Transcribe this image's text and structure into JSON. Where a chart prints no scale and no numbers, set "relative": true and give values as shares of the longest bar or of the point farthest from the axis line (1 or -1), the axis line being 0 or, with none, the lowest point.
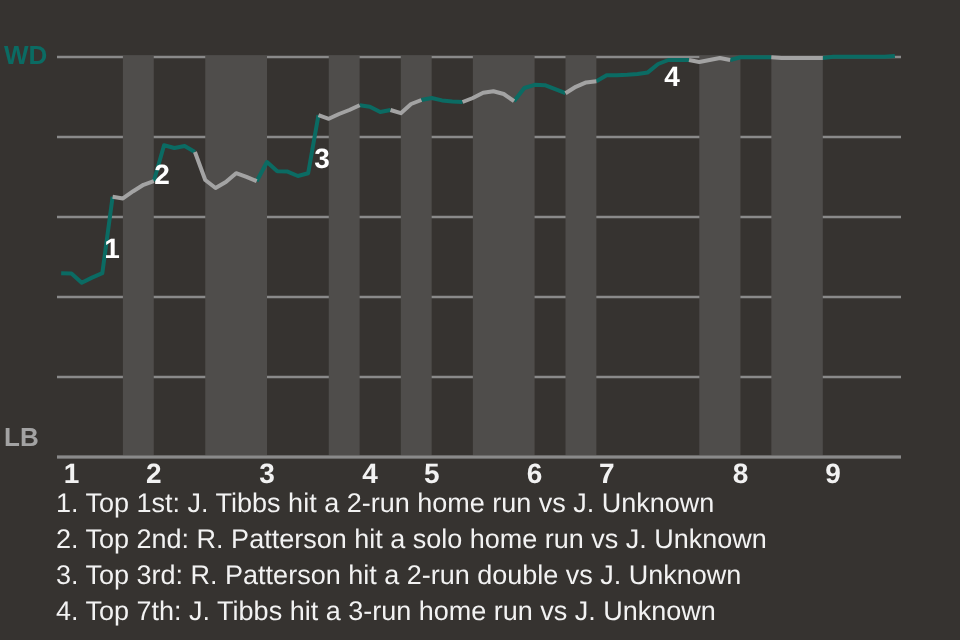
{
  "chart_data": {
    "type": "line",
    "relative": true,
    "categories": [
      null,
      "1",
      null,
      null,
      null,
      null,
      null,
      null,
      null,
      "2",
      null,
      null,
      null,
      null,
      null,
      null,
      null,
      null,
      null,
      null,
      "3",
      null,
      null,
      null,
      null,
      null,
      null,
      null,
      null,
      null,
      "4",
      null,
      null,
      null,
      null,
      null,
      "5",
      null,
      null,
      null,
      null,
      null,
      null,
      null,
      null,
      null,
      "6",
      null,
      null,
      null,
      null,
      null,
      null,
      "7",
      null,
      null,
      null,
      null,
      null,
      null,
      null,
      null,
      null,
      null,
      null,
      null,
      "8",
      null,
      null,
      null,
      null,
      null,
      null,
      null,
      null,
      "9",
      null,
      null,
      null,
      null,
      null,
      null
    ],
    "grid": "y",
    "series": [
      {
        "color": "#0b6b63",
        "values": [
          0.457,
          0.456,
          0.433,
          0.446,
          0.457,
          0.648,
          null,
          null,
          null,
          0.687,
          0.777,
          0.77,
          0.775,
          0.76,
          null,
          null,
          null,
          null,
          null,
          0.687,
          0.735,
          0.712,
          0.711,
          0.7,
          0.707,
          0.852,
          null,
          null,
          null,
          0.877,
          0.873,
          0.86,
          0.865,
          null,
          null,
          0.89,
          0.895,
          0.889,
          0.886,
          0.885,
          null,
          null,
          null,
          null,
          0.887,
          0.92,
          0.928,
          0.927,
          0.917,
          0.907,
          null,
          null,
          0.937,
          0.952,
          0.952,
          0.953,
          0.955,
          0.959,
          0.98,
          0.99,
          0.99,
          0.99,
          null,
          null,
          null,
          0.99,
          0.997,
          0.997,
          0.997,
          0.997,
          null,
          null,
          null,
          null,
          0.995,
          0.998,
          0.998,
          0.998,
          0.998,
          0.998,
          0.998,
          1
        ]
      },
      {
        "color": "#a3a3a3",
        "values": [
          null,
          null,
          null,
          null,
          null,
          0.648,
          0.644,
          0.662,
          0.678,
          0.687,
          null,
          null,
          null,
          0.76,
          0.69,
          0.67,
          0.685,
          0.707,
          0.698,
          0.687,
          null,
          null,
          null,
          null,
          null,
          0.852,
          0.843,
          0.855,
          0.865,
          0.877,
          null,
          null,
          0.865,
          0.857,
          0.88,
          0.89,
          null,
          null,
          null,
          0.885,
          0.895,
          0.908,
          0.912,
          0.905,
          0.887,
          null,
          null,
          null,
          null,
          0.907,
          0.923,
          0.934,
          0.937,
          null,
          null,
          null,
          null,
          null,
          null,
          null,
          null,
          0.99,
          0.985,
          0.99,
          0.995,
          0.99,
          null,
          null,
          null,
          0.997,
          0.995,
          0.995,
          0.995,
          0.995,
          0.995,
          null,
          null,
          null,
          null,
          null,
          null,
          null
        ]
      }
    ],
    "annotations": [
      "WD",
      "LB",
      "1",
      "2",
      "3",
      "4",
      "1. Top 1st: J. Tibbs hit a 2-run home run vs J. Unknown",
      "2. Top 2nd: R. Patterson hit a solo home run vs J. Unknown",
      "3. Top 3rd: R. Patterson hit a 2-run double vs J. Unknown",
      "4. Top 7th: J. Tibbs hit a 3-run home run vs J. Unknown"
    ]
  }
}
